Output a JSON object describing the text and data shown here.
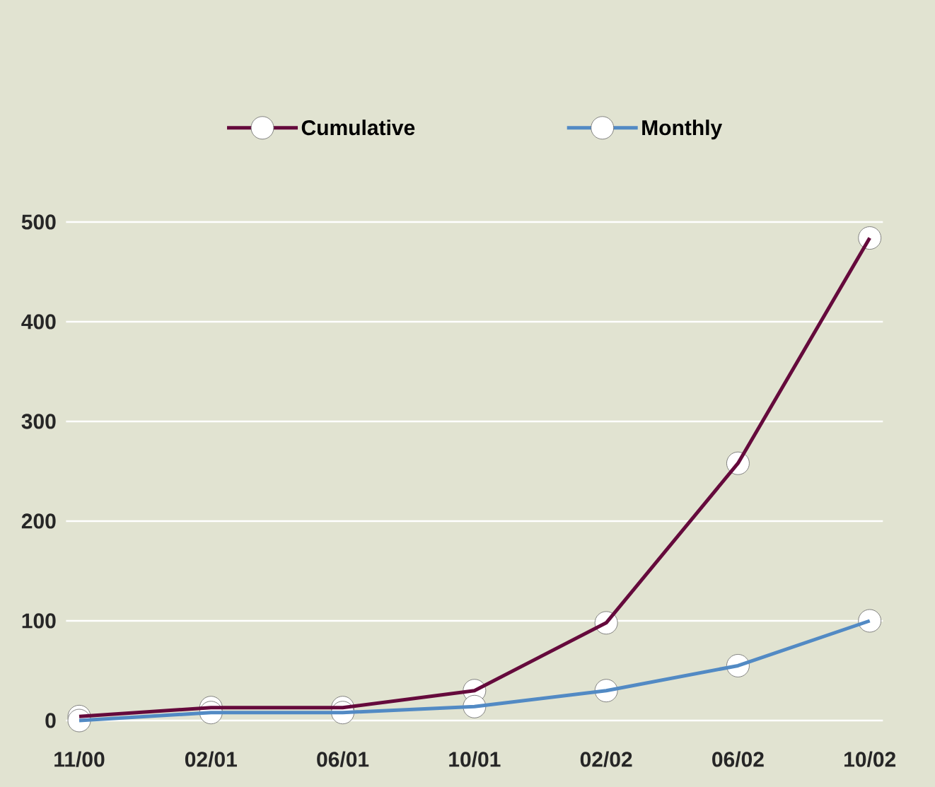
{
  "chart_data": {
    "type": "line",
    "categories": [
      "11/00",
      "02/01",
      "06/01",
      "10/01",
      "02/02",
      "06/02",
      "10/02"
    ],
    "series": [
      {
        "name": "Cumulative",
        "color": "#650a3c",
        "values": [
          4,
          13,
          13,
          30,
          98,
          258,
          484
        ]
      },
      {
        "name": "Monthly",
        "color": "#528ac4",
        "values": [
          0,
          8,
          8,
          14,
          30,
          55,
          100
        ]
      }
    ],
    "ylim": [
      0,
      500
    ],
    "yticks": [
      0,
      100,
      200,
      300,
      400,
      500
    ],
    "grid": "y",
    "legend": "top",
    "marker": "circle",
    "line_style": "solid"
  }
}
